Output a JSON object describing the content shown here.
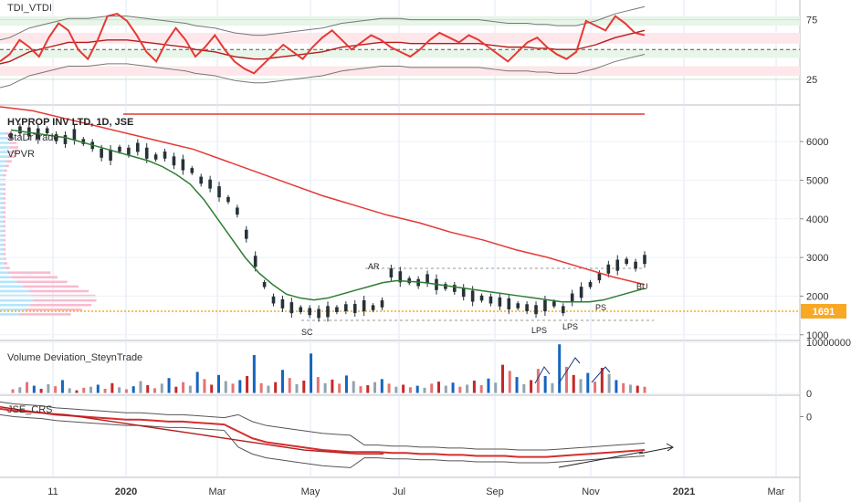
{
  "chart_data": [
    {
      "type": "line",
      "title": "TDI_VTDI",
      "yaxis_ticks": [
        25,
        75
      ],
      "ylim": [
        5,
        90
      ],
      "bands": [
        {
          "from": 70,
          "to": 78,
          "color": "#e8f5e9"
        },
        {
          "from": 55,
          "to": 64,
          "color": "#fde7ea"
        },
        {
          "from": 43,
          "to": 50,
          "color": "#e8f5e9"
        },
        {
          "from": 28,
          "to": 36,
          "color": "#fde7ea"
        }
      ],
      "dashed_level": 50,
      "series": [
        {
          "values": [
            40,
            46,
            58,
            52,
            44,
            60,
            72,
            66,
            50,
            42,
            58,
            78,
            80,
            74,
            62,
            48,
            40,
            56,
            68,
            58,
            44,
            52,
            62,
            50,
            40,
            34,
            30,
            38,
            46,
            54,
            48,
            42,
            52,
            60,
            66,
            58,
            50,
            56,
            62,
            58,
            52,
            48,
            44,
            50,
            58,
            64,
            60,
            56,
            62,
            58,
            52,
            46,
            40,
            48,
            56,
            60,
            52,
            46,
            42,
            48,
            74,
            70,
            66,
            78,
            72,
            64,
            62
          ],
          "color": "#e53935"
        },
        {
          "values": [
            38,
            40,
            44,
            48,
            50,
            52,
            54,
            56,
            56,
            56,
            57,
            58,
            58,
            58,
            57,
            56,
            55,
            54,
            53,
            52,
            50,
            49,
            48,
            46,
            44,
            43,
            42,
            42,
            43,
            44,
            45,
            46,
            47,
            48,
            50,
            52,
            53,
            54,
            55,
            56,
            56,
            56,
            55,
            55,
            55,
            55,
            55,
            55,
            55,
            55,
            54,
            53,
            52,
            52,
            52,
            51,
            51,
            50,
            50,
            50,
            52,
            54,
            57,
            60,
            62,
            64,
            66
          ],
          "color": "#b71c1c"
        }
      ]
    },
    {
      "type": "line",
      "title": "HYPROP INV LTD, 1D, JSE",
      "legend": [
        "StaDrTrade",
        "VPVR"
      ],
      "x_ticks": [
        "11",
        "2020",
        "Mar",
        "May",
        "Jul",
        "Sep",
        "Nov",
        "2021",
        "Mar"
      ],
      "yaxis_ticks": [
        1000,
        2000,
        3000,
        4000,
        5000,
        6000
      ],
      "ylim": [
        900,
        6900
      ],
      "last_value_label": "1691",
      "price": [
        6150,
        6300,
        6250,
        6200,
        6280,
        6100,
        6050,
        6180,
        6000,
        5900,
        5700,
        5650,
        5800,
        5750,
        5850,
        5700,
        5600,
        5650,
        5500,
        5400,
        5250,
        5000,
        4900,
        4700,
        4500,
        4200,
        3600,
        2900,
        2300,
        1900,
        1800,
        1700,
        1650,
        1600,
        1550,
        1600,
        1650,
        1700,
        1680,
        1750,
        1700,
        1800,
        2600,
        2500,
        2400,
        2350,
        2450,
        2300,
        2250,
        2200,
        2100,
        2000,
        1950,
        1900,
        1850,
        1800,
        1750,
        1700,
        1650,
        1750,
        1800,
        1650,
        1950,
        2100,
        2300,
        2500,
        2700,
        2800,
        2900,
        2800,
        2950
      ],
      "ma_fast": [
        6300,
        6250,
        6200,
        6150,
        6100,
        6000,
        5900,
        5800,
        5700,
        5600,
        5500,
        5350,
        5150,
        4900,
        4500,
        4000,
        3500,
        3000,
        2600,
        2300,
        2050,
        1950,
        1900,
        1950,
        2050,
        2150,
        2250,
        2350,
        2400,
        2380,
        2350,
        2300,
        2250,
        2200,
        2150,
        2100,
        2050,
        2000,
        1950,
        1900,
        1850,
        1850,
        1850,
        1900,
        2000,
        2100,
        2200
      ],
      "ma_slow": [
        6900,
        6800,
        6600,
        6400,
        6200,
        6000,
        5800,
        5500,
        5200,
        4900,
        4600,
        4350,
        4100,
        3900,
        3650,
        3450,
        3200,
        3000,
        2750,
        2500,
        2300
      ],
      "annotations": [
        "AR",
        "SC",
        "LPS",
        "LPS",
        "PS",
        "BU"
      ]
    },
    {
      "type": "bar",
      "title": "Volume Deviation_SteynTrade",
      "yaxis_ticks_labels": [
        "10000000",
        "0"
      ],
      "ylim": [
        0,
        10000000
      ],
      "colors": [
        "#e57373",
        "#90a4ae",
        "#1565c0",
        "#c62828"
      ],
      "values": [
        800000,
        1200000,
        2200000,
        1500000,
        900000,
        1800000,
        1400000,
        2600000,
        1000000,
        600000,
        1100000,
        1300000,
        1700000,
        900000,
        2000000,
        1200000,
        800000,
        1400000,
        2400000,
        1600000,
        1000000,
        1900000,
        3000000,
        1300000,
        2200000,
        1500000,
        4200000,
        2800000,
        1700000,
        3600000,
        2400000,
        1900000,
        2600000,
        3400000,
        7500000,
        2000000,
        1500000,
        2200000,
        4600000,
        3000000,
        1800000,
        2500000,
        7800000,
        3200000,
        2000000,
        2700000,
        1900000,
        3500000,
        2400000,
        1400000,
        1600000,
        2200000,
        2800000,
        1900000,
        1300000,
        1700000,
        1200000,
        1500000,
        1100000,
        1900000,
        2300000,
        1500000,
        2100000,
        1300000,
        1700000,
        2500000,
        1600000,
        2900000,
        2100000,
        5600000,
        4400000,
        3200000,
        1800000,
        2600000,
        4800000,
        3400000,
        2000000,
        9600000,
        5200000,
        3600000,
        2800000,
        4000000,
        2300000,
        5000000,
        3800000,
        2600000,
        2000000,
        1700000,
        1500000,
        1300000
      ],
      "values_color_index": [
        0,
        1,
        0,
        2,
        3,
        1,
        0,
        2,
        1,
        3,
        0,
        1,
        2,
        0,
        3,
        1,
        0,
        2,
        1,
        3,
        0,
        1,
        2,
        3,
        0,
        1,
        2,
        0,
        3,
        2,
        1,
        0,
        2,
        3,
        2,
        0,
        1,
        3,
        2,
        0,
        1,
        3,
        2,
        0,
        1,
        3,
        0,
        2,
        1,
        0,
        3,
        1,
        2,
        0,
        1,
        3,
        0,
        2,
        1,
        0,
        3,
        1,
        2,
        0,
        1,
        3,
        0,
        2,
        1,
        3,
        0,
        2,
        1,
        3,
        0,
        2,
        1,
        2,
        0,
        3,
        1,
        2,
        0,
        3,
        1,
        2,
        0,
        1,
        3,
        0
      ]
    },
    {
      "type": "line",
      "title": "JSE_CRS",
      "yaxis_ticks": [
        0
      ],
      "ylim": [
        -60,
        20
      ],
      "series": [
        {
          "values": [
            8,
            6,
            5,
            4,
            2,
            1,
            0,
            -1,
            -2,
            -3,
            -3,
            -4,
            -5,
            -5,
            -6,
            -7,
            -8,
            -15,
            -22,
            -26,
            -28,
            -30,
            -32,
            -34,
            -35,
            -36,
            -36,
            -36,
            -37,
            -37,
            -38,
            -38,
            -39,
            -39,
            -40,
            -40,
            -40,
            -41,
            -41,
            -41,
            -40,
            -39,
            -38,
            -37,
            -36,
            -35,
            -34
          ],
          "color": "#d32f2f"
        },
        {
          "values": [
            10,
            8,
            6,
            4,
            3,
            2,
            0,
            -2,
            -4,
            -6,
            -8,
            -10,
            -12,
            -14,
            -16,
            -18,
            -20,
            -22,
            -24,
            -26,
            -28,
            -30,
            -32,
            -34,
            -35,
            -36,
            -37,
            -38,
            -38,
            -38
          ],
          "color": "#b71c1c"
        }
      ]
    }
  ]
}
